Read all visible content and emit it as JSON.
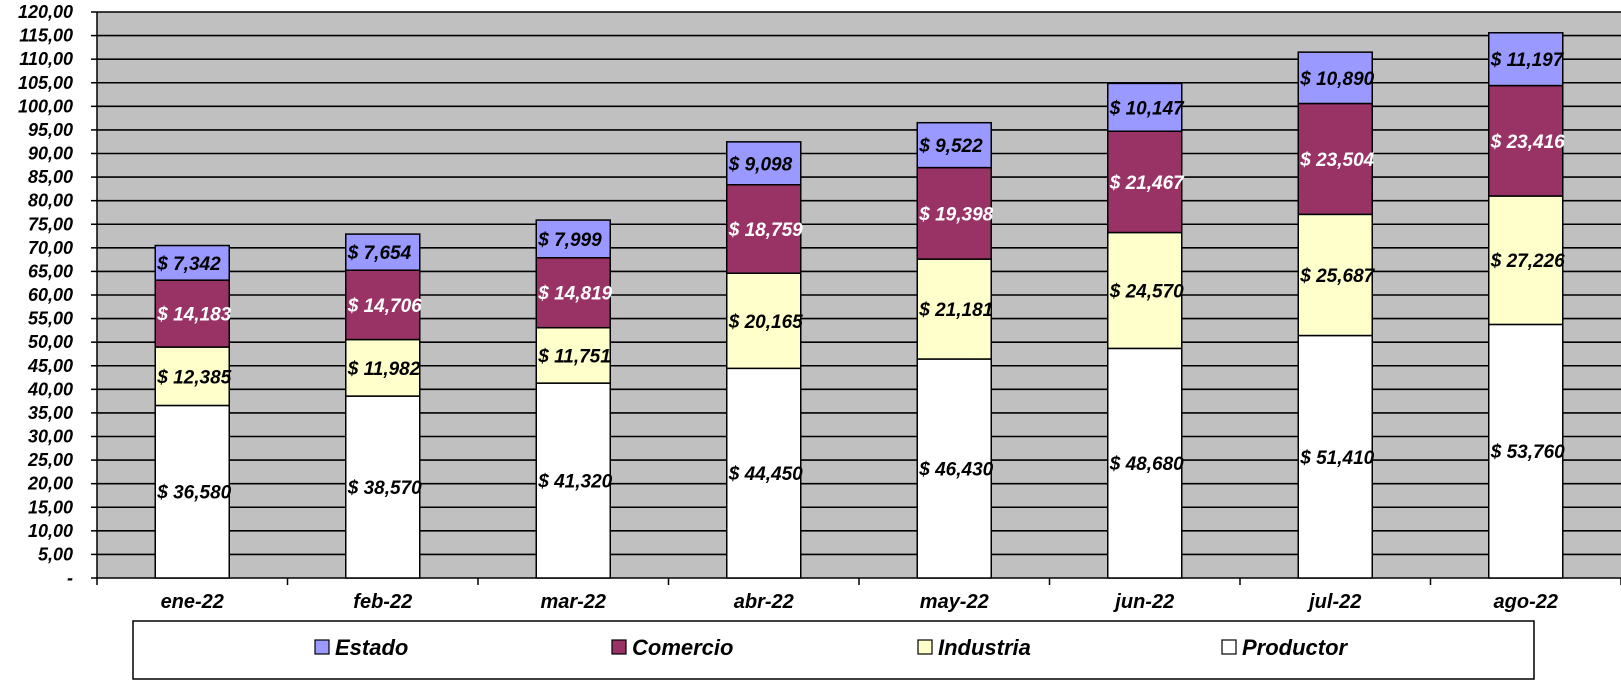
{
  "chart_data": {
    "type": "bar",
    "stacked": true,
    "title": "",
    "xlabel": "",
    "ylabel": "",
    "ylim": [
      0,
      120
    ],
    "yticks": [
      {
        "value": 0,
        "label": "-"
      },
      {
        "value": 5,
        "label": "5,00"
      },
      {
        "value": 10,
        "label": "10,00"
      },
      {
        "value": 15,
        "label": "15,00"
      },
      {
        "value": 20,
        "label": "20,00"
      },
      {
        "value": 25,
        "label": "25,00"
      },
      {
        "value": 30,
        "label": "30,00"
      },
      {
        "value": 35,
        "label": "35,00"
      },
      {
        "value": 40,
        "label": "40,00"
      },
      {
        "value": 45,
        "label": "45,00"
      },
      {
        "value": 50,
        "label": "50,00"
      },
      {
        "value": 55,
        "label": "55,00"
      },
      {
        "value": 60,
        "label": "60,00"
      },
      {
        "value": 65,
        "label": "65,00"
      },
      {
        "value": 70,
        "label": "70,00"
      },
      {
        "value": 75,
        "label": "75,00"
      },
      {
        "value": 80,
        "label": "80,00"
      },
      {
        "value": 85,
        "label": "85,00"
      },
      {
        "value": 90,
        "label": "90,00"
      },
      {
        "value": 95,
        "label": "95,00"
      },
      {
        "value": 100,
        "label": "100,00"
      },
      {
        "value": 105,
        "label": "105,00"
      },
      {
        "value": 110,
        "label": "110,00"
      },
      {
        "value": 115,
        "label": "115,00"
      },
      {
        "value": 120,
        "label": "120,00"
      }
    ],
    "grid": true,
    "legend_position": "bottom",
    "categories": [
      "ene-22",
      "feb-22",
      "mar-22",
      "abr-22",
      "may-22",
      "jun-22",
      "jul-22",
      "ago-22"
    ],
    "series": [
      {
        "name": "Productor",
        "color": "#ffffff",
        "label_color": "#000000",
        "values": [
          36.58,
          38.57,
          41.32,
          44.45,
          46.43,
          48.68,
          51.41,
          53.76
        ],
        "labels": [
          "$ 36,580",
          "$ 38,570",
          "$ 41,320",
          "$ 44,450",
          "$ 46,430",
          "$ 48,680",
          "$ 51,410",
          "$ 53,760"
        ]
      },
      {
        "name": "Industria",
        "color": "#ffffcc",
        "label_color": "#000000",
        "values": [
          12.385,
          11.982,
          11.751,
          20.165,
          21.181,
          24.57,
          25.687,
          27.226
        ],
        "labels": [
          "$ 12,385",
          "$ 11,982",
          "$ 11,751",
          "$ 20,165",
          "$ 21,181",
          "$ 24,570",
          "$ 25,687",
          "$ 27,226"
        ]
      },
      {
        "name": "Comercio",
        "color": "#993366",
        "label_color": "#ffffff",
        "values": [
          14.183,
          14.706,
          14.819,
          18.759,
          19.398,
          21.467,
          23.504,
          23.416
        ],
        "labels": [
          "$ 14,183",
          "$ 14,706",
          "$ 14,819",
          "$ 18,759",
          "$ 19,398",
          "$ 21,467",
          "$ 23,504",
          "$ 23,416"
        ]
      },
      {
        "name": "Estado",
        "color": "#9999ff",
        "label_color": "#000000",
        "values": [
          7.342,
          7.654,
          7.999,
          9.098,
          9.522,
          10.147,
          10.89,
          11.197
        ],
        "labels": [
          "$ 7,342",
          "$ 7,654",
          "$ 7,999",
          "$ 9,098",
          "$ 9,522",
          "$ 10,147",
          "$ 10,890",
          "$ 11,197"
        ]
      }
    ],
    "legend_order": [
      "Estado",
      "Comercio",
      "Industria",
      "Productor"
    ],
    "colors": {
      "plot_background": "#c0c0c0",
      "gridline": "#000000",
      "bar_outline": "#000000"
    }
  }
}
